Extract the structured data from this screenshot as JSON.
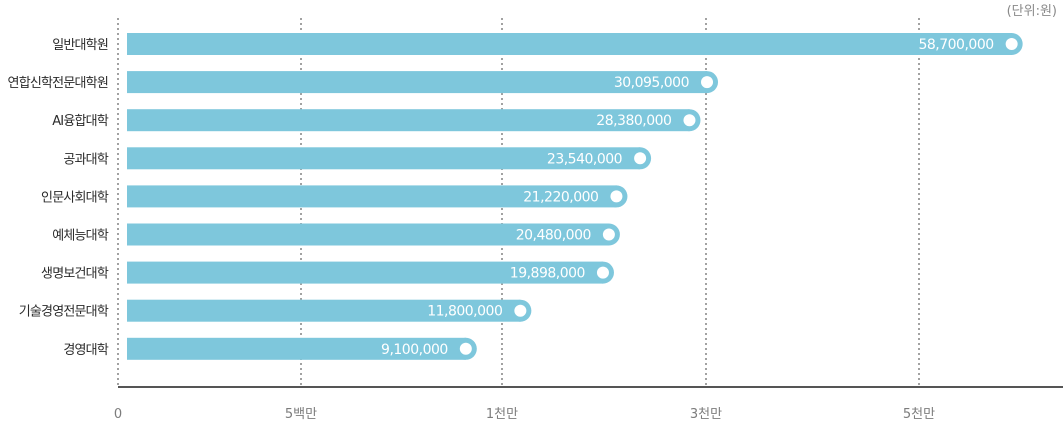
{
  "chart_data": {
    "type": "bar",
    "orientation": "horizontal",
    "unit_label": "(단위:원)",
    "categories": [
      "일반대학원",
      "연합신학전문대학원",
      "AI융합대학",
      "공과대학",
      "인문사회대학",
      "예체능대학",
      "생명보건대학",
      "기술경영전문대학",
      "경영대학"
    ],
    "values": [
      58700000,
      30095000,
      28380000,
      23540000,
      21220000,
      20480000,
      19898000,
      11800000,
      9100000
    ],
    "value_labels": [
      "58,700,000",
      "30,095,000",
      "28,380,000",
      "23,540,000",
      "21,220,000",
      "20,480,000",
      "19,898,000",
      "11,800,000",
      "9,100,000"
    ],
    "x_ticks": [
      {
        "label": "0",
        "value": 0
      },
      {
        "label": "5백만",
        "value": 5000000
      },
      {
        "label": "1천만",
        "value": 10000000
      },
      {
        "label": "3천만",
        "value": 30000000
      },
      {
        "label": "5천만",
        "value": 50000000
      }
    ],
    "grid": "vertical dotted lines at ticks",
    "colors": {
      "bar": "#7ec7dc",
      "end_marker": "#ffffff",
      "axis": "#555555",
      "grid": "#444444",
      "value_text": "#ffffff"
    }
  }
}
